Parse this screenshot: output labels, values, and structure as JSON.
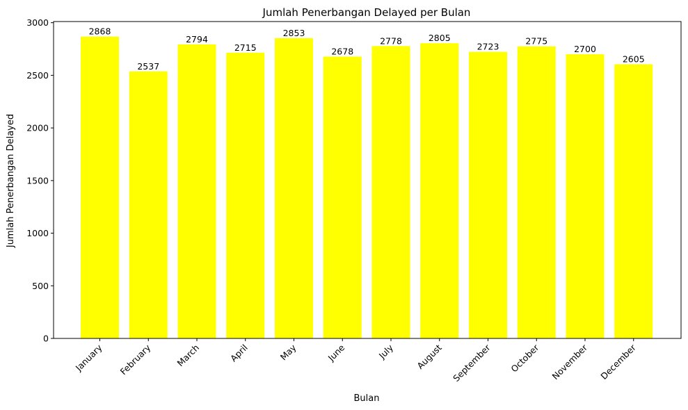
{
  "chart_data": {
    "type": "bar",
    "title": "Jumlah Penerbangan Delayed per Bulan",
    "xlabel": "Bulan",
    "ylabel": "Jumlah Penerbangan Delayed",
    "categories": [
      "January",
      "February",
      "March",
      "April",
      "May",
      "June",
      "July",
      "August",
      "September",
      "October",
      "November",
      "December"
    ],
    "values": [
      2868,
      2537,
      2794,
      2715,
      2853,
      2678,
      2778,
      2805,
      2723,
      2775,
      2700,
      2605
    ],
    "ylim": [
      0,
      3011
    ],
    "yticks": [
      0,
      500,
      1000,
      1500,
      2000,
      2500,
      3000
    ],
    "bar_color": "#ffff00",
    "grid": false,
    "x_tick_rotation": "45 degrees",
    "data_labels": true
  }
}
